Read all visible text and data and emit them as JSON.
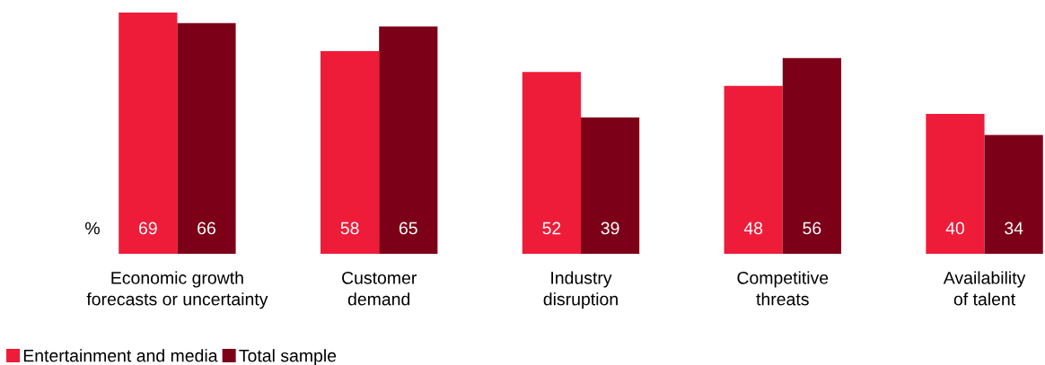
{
  "chart_data": {
    "type": "bar",
    "categories": [
      "Economic growth\nforecasts or uncertainty",
      "Customer\ndemand",
      "Industry\ndisruption",
      "Competitive\nthreats",
      "Availability\nof talent"
    ],
    "series": [
      {
        "name": "Entertainment and media",
        "color": "#ee1c39",
        "values": [
          69,
          58,
          52,
          48,
          40
        ]
      },
      {
        "name": "Total sample",
        "color": "#7d0019",
        "values": [
          66,
          65,
          39,
          56,
          34
        ]
      }
    ],
    "data_labels": true,
    "annotations": [
      "%"
    ],
    "legend": "bottom left",
    "grid": false
  }
}
